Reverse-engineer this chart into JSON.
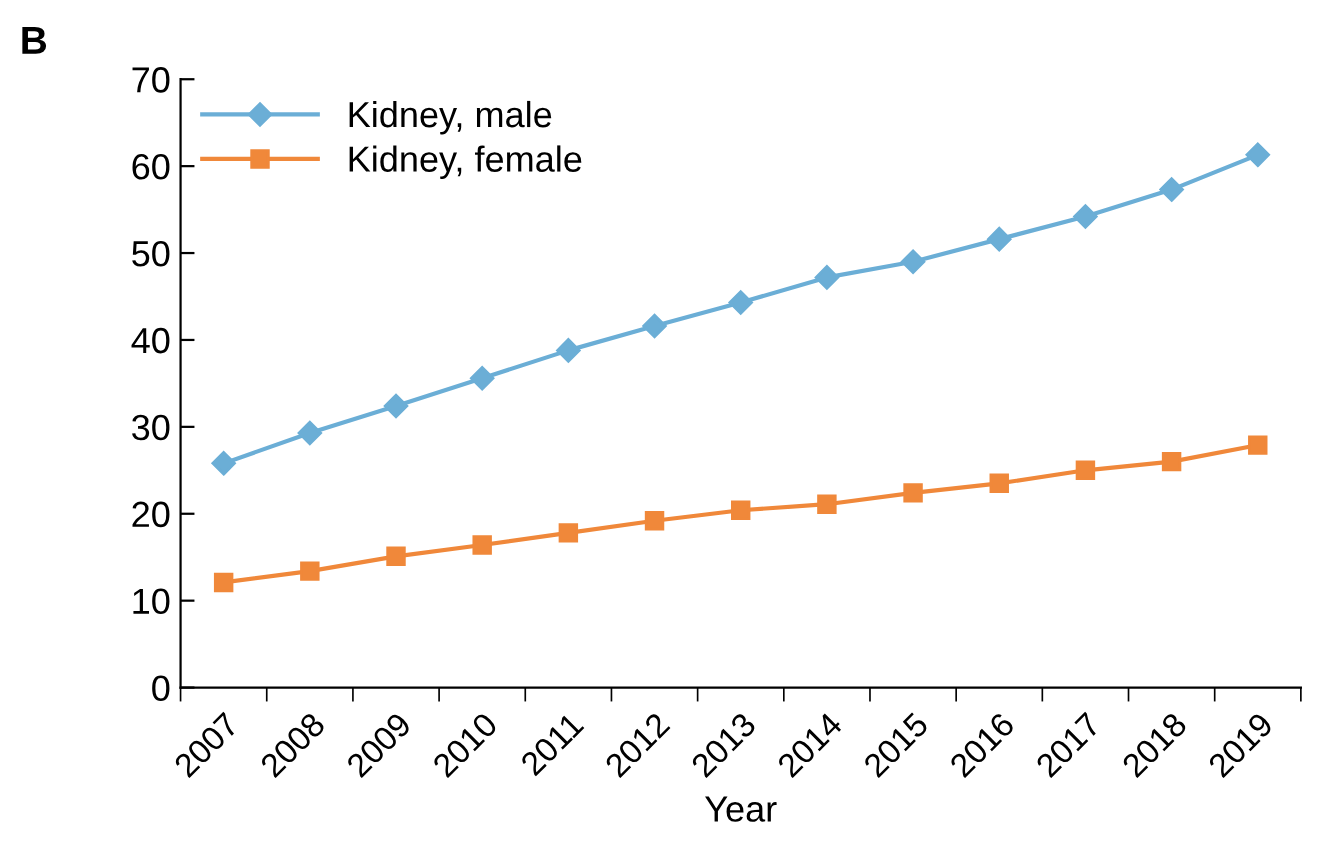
{
  "chart_data": {
    "type": "line",
    "xlabel": "Year",
    "annotations": [
      "B"
    ],
    "categories": [
      "2007",
      "2008",
      "2009",
      "2010",
      "2011",
      "2012",
      "2013",
      "2014",
      "2015",
      "2016",
      "2017",
      "2018",
      "2019"
    ],
    "series": [
      {
        "name": "Kidney, male",
        "color": "#6baed6",
        "marker": "diamond",
        "values": [
          25.8,
          29.3,
          32.4,
          35.6,
          38.8,
          41.6,
          44.3,
          47.2,
          49.0,
          51.6,
          54.2,
          57.3,
          61.3
        ]
      },
      {
        "name": "Kidney, female",
        "color": "#f0883a",
        "marker": "square",
        "values": [
          12.1,
          13.4,
          15.1,
          16.4,
          17.8,
          19.2,
          20.4,
          21.1,
          22.4,
          23.5,
          25.0,
          26.0,
          27.9
        ]
      }
    ],
    "ylim": [
      0,
      70
    ],
    "yticks": [
      0,
      10,
      20,
      30,
      40,
      50,
      60,
      70
    ],
    "grid": false,
    "legend": "top left",
    "line_style": "solid"
  }
}
